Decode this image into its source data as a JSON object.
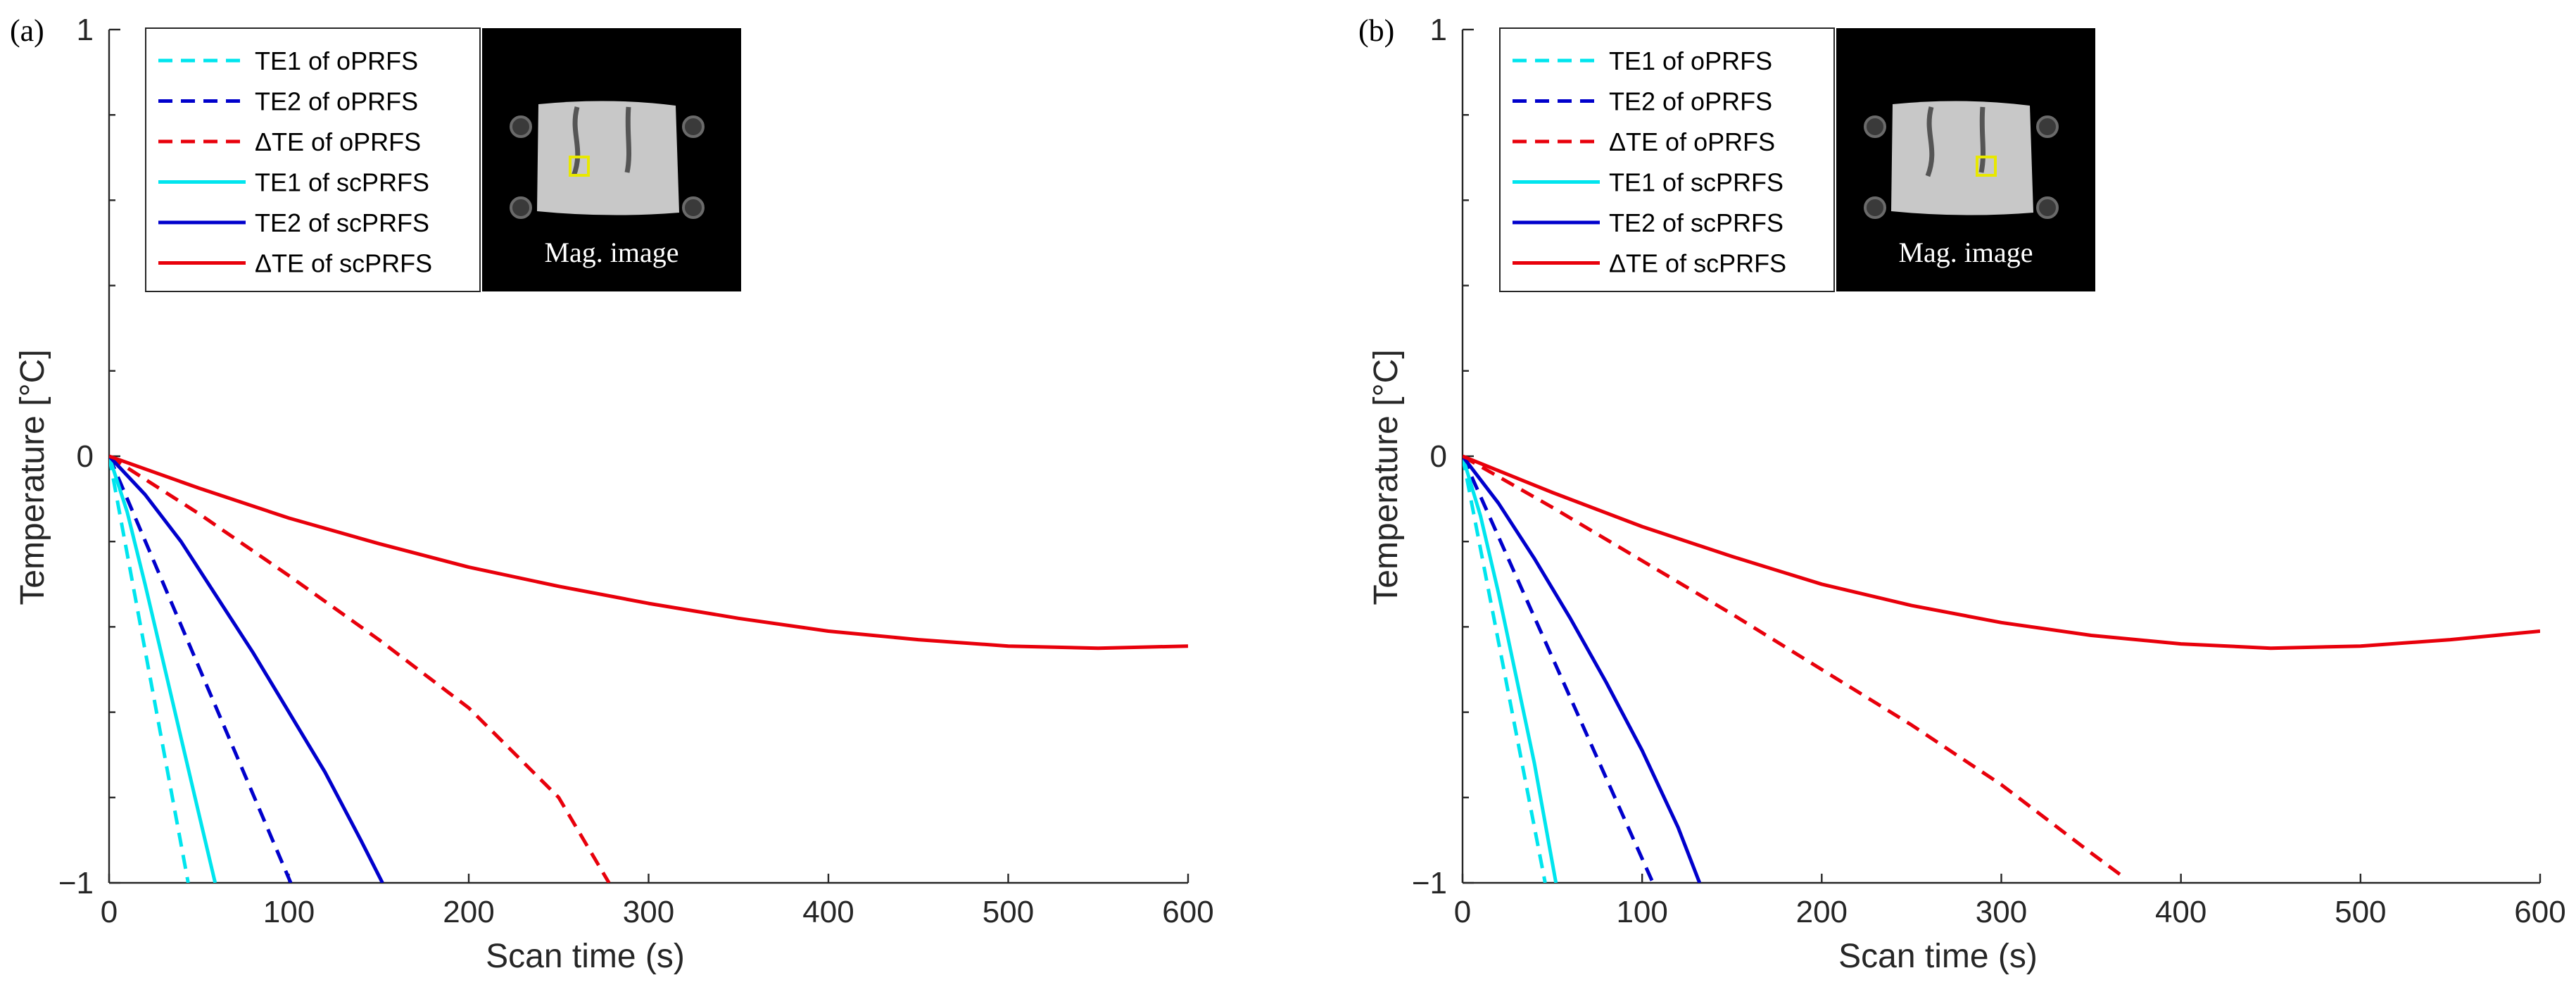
{
  "chart_data": [
    {
      "type": "line",
      "panel_label": "(a)",
      "xlabel": "Scan time (s)",
      "ylabel": "Temperature [°C]",
      "xlim": [
        0,
        600
      ],
      "ylim": [
        -1,
        1
      ],
      "x_ticks": [
        0,
        100,
        200,
        300,
        400,
        500,
        600
      ],
      "y_ticks": [
        {
          "value": -1,
          "label": "−1"
        },
        {
          "value": 0,
          "label": "0"
        },
        {
          "value": 1,
          "label": "1"
        }
      ],
      "y_minor_ticks": [
        -0.8,
        -0.6,
        -0.4,
        -0.2,
        0.2,
        0.4,
        0.6,
        0.8
      ],
      "legend_position": "top-left",
      "inset": {
        "caption": "Mag. image",
        "roi": "left"
      },
      "series": [
        {
          "name": "TE1 of oPRFS",
          "color": "#00E5EE",
          "style": "dashed",
          "x": [
            0,
            44
          ],
          "y": [
            0,
            -1
          ]
        },
        {
          "name": "TE2 of oPRFS",
          "color": "#0000CC",
          "style": "dashed",
          "x": [
            0,
            101
          ],
          "y": [
            0,
            -1
          ]
        },
        {
          "name": "ΔTE of oPRFS",
          "color": "#E8000B",
          "style": "dashed",
          "x": [
            0,
            50,
            100,
            150,
            200,
            250,
            278
          ],
          "y": [
            0,
            -0.135,
            -0.28,
            -0.43,
            -0.59,
            -0.8,
            -1
          ]
        },
        {
          "name": "TE1 of scPRFS",
          "color": "#00E5EE",
          "style": "solid",
          "x": [
            0,
            10,
            20,
            30,
            40,
            50,
            59
          ],
          "y": [
            0,
            -0.13,
            -0.3,
            -0.48,
            -0.66,
            -0.84,
            -1
          ]
        },
        {
          "name": "TE2 of scPRFS",
          "color": "#0000CC",
          "style": "solid",
          "x": [
            0,
            20,
            40,
            60,
            80,
            100,
            120,
            140,
            152
          ],
          "y": [
            0,
            -0.09,
            -0.2,
            -0.33,
            -0.46,
            -0.6,
            -0.74,
            -0.9,
            -1
          ]
        },
        {
          "name": "ΔTE of scPRFS",
          "color": "#E8000B",
          "style": "solid",
          "x": [
            0,
            50,
            100,
            150,
            200,
            250,
            300,
            350,
            400,
            450,
            500,
            550,
            600
          ],
          "y": [
            0,
            -0.075,
            -0.145,
            -0.205,
            -0.26,
            -0.305,
            -0.345,
            -0.38,
            -0.41,
            -0.43,
            -0.445,
            -0.45,
            -0.445
          ]
        }
      ]
    },
    {
      "type": "line",
      "panel_label": "(b)",
      "xlabel": "Scan time (s)",
      "ylabel": "Temperature [°C]",
      "xlim": [
        0,
        600
      ],
      "ylim": [
        -1,
        1
      ],
      "x_ticks": [
        0,
        100,
        200,
        300,
        400,
        500,
        600
      ],
      "y_ticks": [
        {
          "value": -1,
          "label": "−1"
        },
        {
          "value": 0,
          "label": "0"
        },
        {
          "value": 1,
          "label": "1"
        }
      ],
      "y_minor_ticks": [
        -0.8,
        -0.6,
        -0.4,
        -0.2,
        0.2,
        0.4,
        0.6,
        0.8
      ],
      "legend_position": "top-left",
      "inset": {
        "caption": "Mag. image",
        "roi": "right"
      },
      "series": [
        {
          "name": "TE1 of oPRFS",
          "color": "#00E5EE",
          "style": "dashed",
          "x": [
            0,
            46
          ],
          "y": [
            0,
            -1
          ]
        },
        {
          "name": "TE2 of oPRFS",
          "color": "#0000CC",
          "style": "dashed",
          "x": [
            0,
            106
          ],
          "y": [
            0,
            -1
          ]
        },
        {
          "name": "ΔTE of oPRFS",
          "color": "#E8000B",
          "style": "dashed",
          "x": [
            0,
            50,
            100,
            150,
            200,
            250,
            300,
            350,
            366
          ],
          "y": [
            0,
            -0.12,
            -0.245,
            -0.37,
            -0.5,
            -0.63,
            -0.77,
            -0.93,
            -0.98
          ]
        },
        {
          "name": "TE1 of scPRFS",
          "color": "#00E5EE",
          "style": "solid",
          "x": [
            0,
            10,
            20,
            30,
            40,
            52
          ],
          "y": [
            0,
            -0.14,
            -0.32,
            -0.52,
            -0.72,
            -1
          ]
        },
        {
          "name": "TE2 of scPRFS",
          "color": "#0000CC",
          "style": "solid",
          "x": [
            0,
            20,
            40,
            60,
            80,
            100,
            120,
            132
          ],
          "y": [
            0,
            -0.11,
            -0.24,
            -0.38,
            -0.53,
            -0.69,
            -0.87,
            -1
          ]
        },
        {
          "name": "ΔTE of scPRFS",
          "color": "#E8000B",
          "style": "solid",
          "x": [
            0,
            50,
            100,
            150,
            200,
            250,
            300,
            350,
            400,
            450,
            500,
            550,
            600
          ],
          "y": [
            0,
            -0.085,
            -0.165,
            -0.235,
            -0.3,
            -0.35,
            -0.39,
            -0.42,
            -0.44,
            -0.45,
            -0.445,
            -0.43,
            -0.41
          ]
        }
      ]
    }
  ]
}
